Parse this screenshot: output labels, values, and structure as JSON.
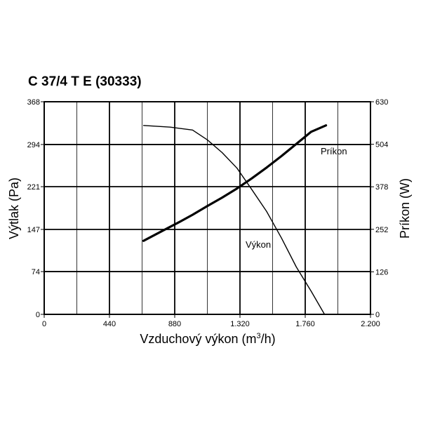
{
  "chart_data": {
    "type": "line",
    "title": "C 37/4 T E (30333)",
    "xlabel": "Vzduchový výkon (m",
    "xlabel_sup": "3",
    "xlabel_end": "/h)",
    "ylabel_left": "Výtlak (Pa)",
    "ylabel_right": "Príkon (W)",
    "xlim": [
      0,
      2200
    ],
    "ylim_left": [
      0,
      368
    ],
    "ylim_right": [
      0,
      630
    ],
    "x_ticks": [
      0,
      440,
      880,
      1320,
      1760,
      2200
    ],
    "x_tick_labels": [
      "0",
      "440",
      "880",
      "1.320",
      "1.760",
      "2.200"
    ],
    "y_left_ticks": [
      0,
      74,
      147,
      221,
      294,
      368
    ],
    "y_left_tick_labels": [
      "0",
      "74",
      "147",
      "221",
      "294",
      "368"
    ],
    "y_right_ticks": [
      0,
      126,
      252,
      378,
      504,
      630
    ],
    "y_right_tick_labels": [
      "0",
      "126",
      "252",
      "378",
      "504",
      "630"
    ],
    "grid": true,
    "series": [
      {
        "name": "Výkon",
        "axis": "left",
        "color": "#000000",
        "x": [
          670,
          850,
          1000,
          1100,
          1200,
          1300,
          1400,
          1500,
          1600,
          1700,
          1800,
          1890
        ],
        "y": [
          327,
          324,
          319,
          302,
          280,
          253,
          216,
          178,
          132,
          82,
          40,
          0
        ]
      },
      {
        "name": "Príkon",
        "axis": "right",
        "color": "#000000",
        "x": [
          670,
          800,
          900,
          1000,
          1100,
          1200,
          1300,
          1400,
          1500,
          1600,
          1700,
          1800,
          1900
        ],
        "y": [
          218,
          248,
          271,
          295,
          321,
          346,
          373,
          403,
          435,
          469,
          505,
          541,
          560
        ]
      }
    ]
  }
}
